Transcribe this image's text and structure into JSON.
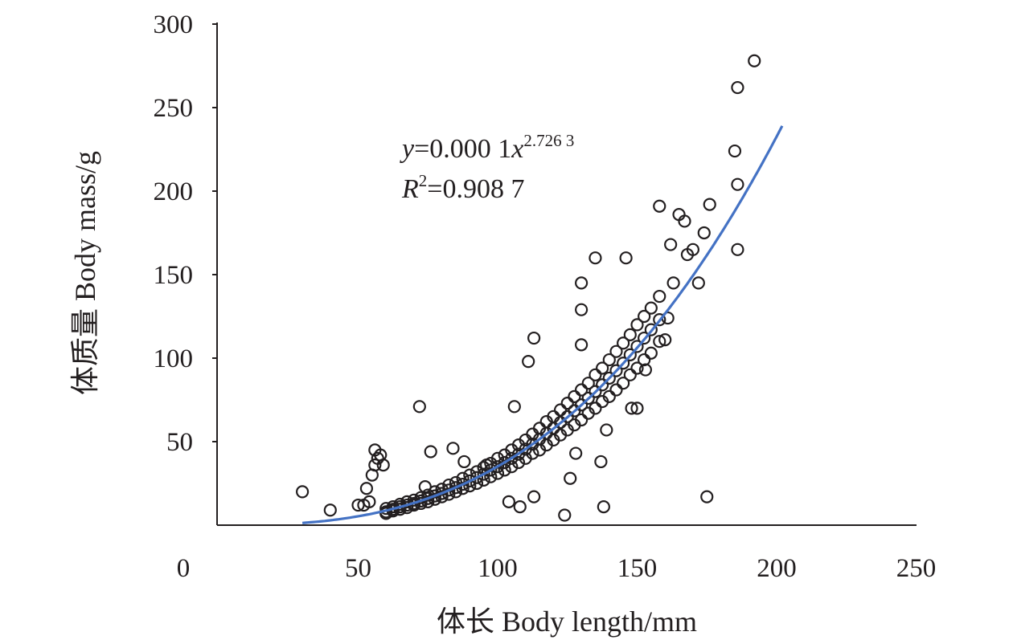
{
  "chart_data": {
    "type": "scatter",
    "xlabel": "体长 Body length/mm",
    "ylabel": "体质量 Body mass/g",
    "xlim": [
      0,
      250
    ],
    "ylim": [
      0,
      300
    ],
    "x_ticks": [
      "0",
      "50",
      "100",
      "150",
      "200",
      "250"
    ],
    "x_tick_values": [
      0,
      50,
      100,
      150,
      200,
      250
    ],
    "y_ticks": [
      "50",
      "100",
      "150",
      "200",
      "250",
      "300"
    ],
    "y_tick_values": [
      50,
      100,
      150,
      200,
      250,
      300
    ],
    "grid": false,
    "annotation": {
      "equation_prefix": "y",
      "equation_mid": "=0.000 1",
      "equation_var": "x",
      "equation_exp": "2.726 3",
      "r2_prefix": "R",
      "r2_exp": "2",
      "r2_value": "=0.908 7"
    },
    "fit": {
      "type": "power",
      "coefficient": 0.000124,
      "exponent": 2.7263,
      "x_range": [
        30,
        202
      ],
      "color": "#4472C4"
    },
    "marker_color": "#231f20",
    "points": [
      [
        30,
        20
      ],
      [
        40,
        9
      ],
      [
        50,
        12
      ],
      [
        52,
        12
      ],
      [
        53,
        22
      ],
      [
        54,
        14
      ],
      [
        55,
        30
      ],
      [
        56,
        36
      ],
      [
        56,
        45
      ],
      [
        57,
        40
      ],
      [
        58,
        42
      ],
      [
        59,
        36
      ],
      [
        72,
        71
      ],
      [
        74,
        23
      ],
      [
        76,
        44
      ],
      [
        84,
        46
      ],
      [
        88,
        38
      ],
      [
        96,
        36
      ],
      [
        104,
        14
      ],
      [
        106,
        71
      ],
      [
        108,
        11
      ],
      [
        111,
        98
      ],
      [
        113,
        112
      ],
      [
        113,
        17
      ],
      [
        124,
        6
      ],
      [
        126,
        28
      ],
      [
        128,
        43
      ],
      [
        130,
        145
      ],
      [
        130,
        129
      ],
      [
        130,
        108
      ],
      [
        135,
        160
      ],
      [
        137,
        38
      ],
      [
        138,
        11
      ],
      [
        139,
        57
      ],
      [
        146,
        160
      ],
      [
        148,
        70
      ],
      [
        150,
        70
      ],
      [
        153,
        93
      ],
      [
        158,
        191
      ],
      [
        160,
        111
      ],
      [
        161,
        124
      ],
      [
        162,
        168
      ],
      [
        163,
        145
      ],
      [
        165,
        186
      ],
      [
        167,
        182
      ],
      [
        168,
        162
      ],
      [
        170,
        165
      ],
      [
        172,
        145
      ],
      [
        174,
        175
      ],
      [
        175,
        17
      ],
      [
        176,
        192
      ],
      [
        185,
        224
      ],
      [
        186,
        204
      ],
      [
        186,
        262
      ],
      [
        186,
        165
      ],
      [
        192,
        278
      ],
      [
        60,
        8
      ],
      [
        60,
        10
      ],
      [
        60,
        7
      ],
      [
        62.5,
        9.5
      ],
      [
        62.5,
        11
      ],
      [
        62.5,
        8.5
      ],
      [
        65,
        11
      ],
      [
        65,
        12.5
      ],
      [
        65,
        9.5
      ],
      [
        67.5,
        12
      ],
      [
        67.5,
        14
      ],
      [
        67.5,
        10.5
      ],
      [
        70,
        13
      ],
      [
        70,
        15
      ],
      [
        70,
        12
      ],
      [
        72.5,
        14.5
      ],
      [
        72.5,
        16.5
      ],
      [
        72.5,
        13
      ],
      [
        75,
        16
      ],
      [
        75,
        18
      ],
      [
        75,
        14
      ],
      [
        77.5,
        17.5
      ],
      [
        77.5,
        20
      ],
      [
        77.5,
        15.5
      ],
      [
        80,
        19
      ],
      [
        80,
        21.5
      ],
      [
        80,
        17
      ],
      [
        82.5,
        21
      ],
      [
        82.5,
        24
      ],
      [
        82.5,
        18.5
      ],
      [
        85,
        22.5
      ],
      [
        85,
        25.5
      ],
      [
        85,
        20
      ],
      [
        87.5,
        24.5
      ],
      [
        87.5,
        28
      ],
      [
        87.5,
        22
      ],
      [
        90,
        26.5
      ],
      [
        90,
        30
      ],
      [
        90,
        23.5
      ],
      [
        92.5,
        28.5
      ],
      [
        92.5,
        32
      ],
      [
        92.5,
        25
      ],
      [
        95,
        30.5
      ],
      [
        95,
        34.5
      ],
      [
        95,
        27
      ],
      [
        97.5,
        33
      ],
      [
        97.5,
        37
      ],
      [
        97.5,
        29
      ],
      [
        100,
        35
      ],
      [
        100,
        40
      ],
      [
        100,
        31
      ],
      [
        102.5,
        37.5
      ],
      [
        102.5,
        42
      ],
      [
        102.5,
        33
      ],
      [
        105,
        40
      ],
      [
        105,
        45
      ],
      [
        105,
        35
      ],
      [
        107.5,
        42.5
      ],
      [
        107.5,
        48
      ],
      [
        107.5,
        37.5
      ],
      [
        110,
        45.5
      ],
      [
        110,
        51
      ],
      [
        110,
        40
      ],
      [
        112.5,
        48.5
      ],
      [
        112.5,
        54.5
      ],
      [
        112.5,
        43
      ],
      [
        115,
        51.5
      ],
      [
        115,
        58
      ],
      [
        115,
        45
      ],
      [
        117.5,
        55
      ],
      [
        117.5,
        62
      ],
      [
        117.5,
        48
      ],
      [
        120,
        58
      ],
      [
        120,
        65
      ],
      [
        120,
        51
      ],
      [
        122.5,
        61.5
      ],
      [
        122.5,
        69
      ],
      [
        122.5,
        54
      ],
      [
        125,
        65
      ],
      [
        125,
        73
      ],
      [
        125,
        57
      ],
      [
        127.5,
        68.5
      ],
      [
        127.5,
        77
      ],
      [
        127.5,
        60
      ],
      [
        130,
        72
      ],
      [
        130,
        81
      ],
      [
        130,
        63
      ],
      [
        132.5,
        76
      ],
      [
        132.5,
        85
      ],
      [
        132.5,
        67
      ],
      [
        135,
        80
      ],
      [
        135,
        90
      ],
      [
        135,
        70
      ],
      [
        137.5,
        84
      ],
      [
        137.5,
        94
      ],
      [
        137.5,
        74
      ],
      [
        140,
        88
      ],
      [
        140,
        99
      ],
      [
        140,
        77
      ],
      [
        142.5,
        92.5
      ],
      [
        142.5,
        104
      ],
      [
        142.5,
        81
      ],
      [
        145,
        97
      ],
      [
        145,
        109
      ],
      [
        145,
        85
      ],
      [
        147.5,
        102
      ],
      [
        147.5,
        114
      ],
      [
        147.5,
        90
      ],
      [
        150,
        107
      ],
      [
        150,
        120
      ],
      [
        150,
        94
      ],
      [
        152.5,
        112
      ],
      [
        152.5,
        125
      ],
      [
        152.5,
        99
      ],
      [
        155,
        117
      ],
      [
        155,
        130
      ],
      [
        155,
        103
      ],
      [
        158,
        123
      ],
      [
        158,
        137
      ],
      [
        158,
        110
      ]
    ]
  }
}
